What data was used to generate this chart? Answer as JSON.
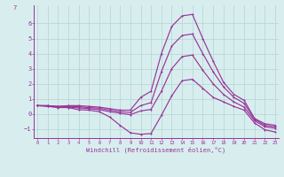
{
  "xlabel": "Windchill (Refroidissement éolien,°C)",
  "bg_color": "#d8eeee",
  "line_color": "#993399",
  "grid_color": "#b8d8d8",
  "x_ticks": [
    0,
    1,
    2,
    3,
    4,
    5,
    6,
    7,
    8,
    9,
    10,
    11,
    12,
    13,
    14,
    15,
    16,
    17,
    18,
    19,
    20,
    21,
    22,
    23
  ],
  "y_ticks": [
    -1,
    0,
    1,
    2,
    3,
    4,
    5,
    6
  ],
  "ylim": [
    -1.6,
    7.2
  ],
  "xlim": [
    -0.3,
    23.3
  ],
  "lines": [
    [
      0.55,
      0.55,
      0.5,
      0.55,
      0.55,
      0.5,
      0.45,
      0.35,
      0.25,
      0.25,
      1.1,
      1.5,
      4.0,
      5.8,
      6.5,
      6.6,
      5.0,
      3.5,
      2.1,
      1.3,
      0.9,
      -0.3,
      -0.65,
      -0.75
    ],
    [
      0.55,
      0.55,
      0.5,
      0.5,
      0.48,
      0.42,
      0.38,
      0.25,
      0.15,
      0.1,
      0.55,
      0.75,
      2.8,
      4.5,
      5.2,
      5.3,
      4.0,
      2.8,
      1.8,
      1.1,
      0.7,
      -0.35,
      -0.75,
      -0.85
    ],
    [
      0.55,
      0.52,
      0.45,
      0.45,
      0.4,
      0.35,
      0.28,
      0.15,
      0.05,
      -0.05,
      0.2,
      0.3,
      1.5,
      3.0,
      3.8,
      3.9,
      2.9,
      2.0,
      1.3,
      0.8,
      0.45,
      -0.45,
      -0.85,
      -0.95
    ],
    [
      0.55,
      0.5,
      0.42,
      0.42,
      0.28,
      0.25,
      0.15,
      -0.2,
      -0.75,
      -1.25,
      -1.35,
      -1.3,
      -0.1,
      1.2,
      2.2,
      2.3,
      1.7,
      1.1,
      0.8,
      0.5,
      0.25,
      -0.6,
      -1.05,
      -1.2
    ]
  ]
}
